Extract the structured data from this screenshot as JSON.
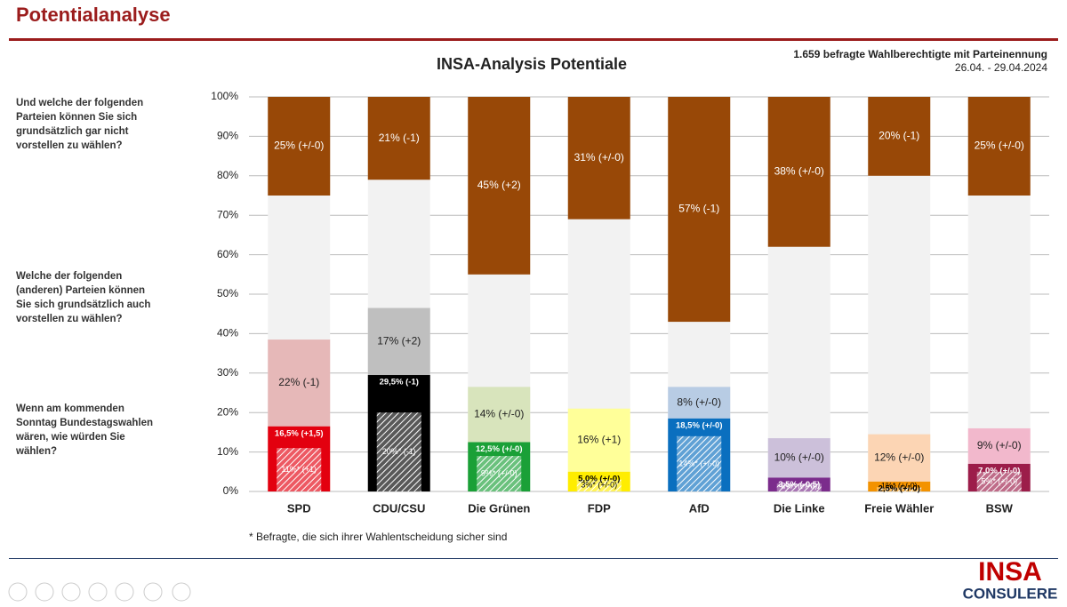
{
  "header": {
    "title": "Potentialanalyse"
  },
  "chart_data": {
    "type": "potential-bar",
    "title": "INSA-Analysis Potentiale",
    "subtitle": [
      "1.659 befragte Wahlberechtigte mit Parteinennung",
      "26.04. - 29.04.2024"
    ],
    "questions": [
      [
        "Und welche der folgenden",
        "Parteien können Sie sich",
        "grundsätzlich gar nicht",
        "vorstellen zu wählen?"
      ],
      [
        "Welche der folgenden",
        "(anderen) Parteien können",
        "Sie sich grundsätzlich auch",
        "vorstellen zu wählen?"
      ],
      [
        "Wenn am kommenden",
        "Sonntag Bundestagswahlen",
        "wären, wie würden Sie",
        "wählen?"
      ]
    ],
    "categories": [
      "SPD",
      "CDU/CSU",
      "Die Grünen",
      "FDP",
      "AfD",
      "Die Linke",
      "Freie Wähler",
      "BSW"
    ],
    "background_color": "#f2f2f2",
    "series": [
      {
        "values": [
          16.5,
          29.5,
          12.5,
          5.0,
          18.5,
          3.5,
          2.5,
          7.0
        ],
        "value_labels": [
          "16,5% (+1,5)",
          "29,5% (-1)",
          "12,5% (+/-0)",
          "5,0% (+/-0)",
          "18,5% (+/-0)",
          "3,5% (-0,5)",
          "2,5% (+/-0)",
          "7,0% (+/-0)"
        ],
        "colors": [
          "#e3000f",
          "#000000",
          "#1aa037",
          "#ffed00",
          "#0a6fbf",
          "#7b2c8c",
          "#f39200",
          "#9c1d4a"
        ]
      },
      {
        "values": [
          11,
          20,
          9,
          3,
          14,
          2,
          1,
          5
        ],
        "value_labels": [
          "11%* (+1)",
          "20%* (-1)",
          "9%* (+/-0)",
          "3%* (+/-0)",
          "14%* (+/-0)",
          "2%* (+/-0)",
          "1%* (+/-0)",
          "5%* (+/-0)"
        ]
      },
      {
        "values": [
          22,
          17,
          14,
          16,
          8,
          10,
          12,
          9
        ],
        "value_labels": [
          "22% (-1)",
          "17% (+2)",
          "14% (+/-0)",
          "16% (+1)",
          "8% (+/-0)",
          "10% (+/-0)",
          "12% (+/-0)",
          "9% (+/-0)"
        ],
        "colors": [
          "#e6b8b8",
          "#bfbfbf",
          "#d8e4bc",
          "#ffff99",
          "#b8cce4",
          "#ccc0da",
          "#fcd5b4",
          "#f2b8cc"
        ]
      },
      {
        "values": [
          25,
          21,
          45,
          31,
          57,
          38,
          20,
          25
        ],
        "value_labels": [
          "25% (+/-0)",
          "21% (-1)",
          "45% (+2)",
          "31% (+/-0)",
          "57% (-1)",
          "38% (+/-0)",
          "20% (-1)",
          "25% (+/-0)"
        ],
        "color": "#984807"
      }
    ],
    "ylim": [
      0,
      100
    ],
    "yticks": [
      {
        "value": 0,
        "label": "0%"
      },
      {
        "value": 10,
        "label": "10%"
      },
      {
        "value": 20,
        "label": "20%"
      },
      {
        "value": 30,
        "label": "30%"
      },
      {
        "value": 40,
        "label": "40%"
      },
      {
        "value": 50,
        "label": "50%"
      },
      {
        "value": 60,
        "label": "60%"
      },
      {
        "value": 70,
        "label": "70%"
      },
      {
        "value": 80,
        "label": "80%"
      },
      {
        "value": 90,
        "label": "90%"
      },
      {
        "value": 100,
        "label": "100%"
      }
    ],
    "grid": true,
    "footnote": "* Befragte, die sich ihrer Wahlentscheidung sicher sind"
  },
  "logo": {
    "top": "INSA",
    "bottom": "CONSULERE"
  }
}
